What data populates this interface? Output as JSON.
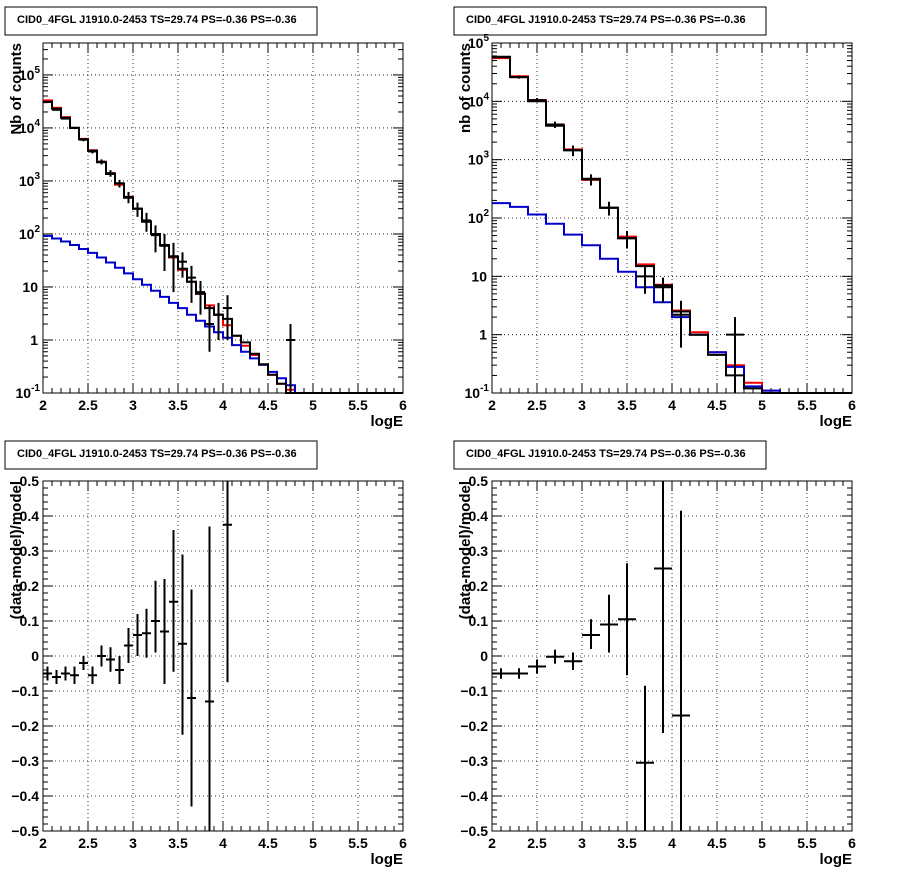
{
  "chart_data": [
    {
      "type": "line",
      "title": "CID0_4FGL J1910.0-2453 TS=29.74 PS=-0.36 PS=-0.36",
      "xlabel": "logE",
      "ylabel": "Nb of counts",
      "xlim": [
        2,
        6
      ],
      "ylim": [
        0.1,
        400000
      ],
      "yscale": "log",
      "grid": true,
      "x_ticks": [
        "2",
        "2.5",
        "3",
        "3.5",
        "4",
        "4.5",
        "5",
        "5.5",
        "6"
      ],
      "y_ticks": [
        "10^-1",
        "1",
        "10",
        "10^2",
        "10^3",
        "10^4",
        "10^5"
      ],
      "bin_edges": [
        2.0,
        2.1,
        2.2,
        2.3,
        2.4,
        2.5,
        2.6,
        2.7,
        2.8,
        2.9,
        3.0,
        3.1,
        3.2,
        3.3,
        3.4,
        3.5,
        3.6,
        3.7,
        3.8,
        3.9,
        4.0,
        4.1,
        4.2,
        4.3,
        4.4,
        4.5,
        4.6,
        4.7,
        4.8,
        4.9,
        5.0,
        5.1,
        5.2,
        5.3,
        5.4,
        5.5,
        5.6,
        5.7,
        5.8,
        5.9,
        6.0
      ],
      "series": [
        {
          "color": "#ff0000",
          "values": [
            33000,
            24000,
            16000,
            10000,
            6200,
            3800,
            2300,
            1400,
            850,
            500,
            300,
            175,
            100,
            60,
            36,
            21,
            12.5,
            7.4,
            4.5,
            3.0,
            1.9,
            1.2,
            0.78,
            0.52,
            0.34,
            0.22,
            0.15,
            0.115,
            0.1,
            0.1,
            0.1,
            0.1,
            0.1,
            0.1,
            0.1,
            0.1,
            0.1,
            0.1,
            0.1,
            0.1
          ]
        },
        {
          "color": "#0000cc",
          "values": [
            92,
            82,
            72,
            62,
            52,
            44,
            36,
            29,
            23,
            18,
            14,
            11,
            8.5,
            6.5,
            5.0,
            4.0,
            3.0,
            2.3,
            1.8,
            1.4,
            1.1,
            0.8,
            0.6,
            0.45,
            0.34,
            0.25,
            0.19,
            0.14,
            0.1,
            0.1,
            0.1,
            0.1,
            0.1,
            0.1,
            0.1,
            0.1,
            0.1,
            0.1,
            0.1,
            0.1
          ]
        },
        {
          "color": "#000000",
          "values": [
            31000,
            23000,
            15500,
            10000,
            6100,
            3700,
            2250,
            1350,
            900,
            480,
            300,
            170,
            100,
            62,
            37,
            22,
            12.5,
            7.5,
            4.0,
            3.0,
            2.5,
            1.2,
            0.9,
            0.55,
            0.35,
            0.22,
            0.15,
            0.1,
            0.1,
            0.1,
            0.1,
            0.1,
            0.1,
            0.1,
            0.1,
            0.1,
            0.1,
            0.1,
            0.1,
            0.1
          ]
        }
      ],
      "data_points": {
        "x": [
          2.05,
          2.15,
          2.25,
          2.35,
          2.45,
          2.55,
          2.65,
          2.75,
          2.85,
          2.95,
          3.05,
          3.15,
          3.25,
          3.35,
          3.45,
          3.55,
          3.65,
          3.75,
          3.85,
          3.95,
          4.05,
          4.75
        ],
        "y": [
          31000,
          22000,
          15000,
          10000,
          6000,
          3600,
          2300,
          1400,
          900,
          500,
          300,
          180,
          95,
          60,
          38,
          30,
          15,
          8,
          2,
          3,
          4,
          1
        ],
        "err_low": [
          1000,
          800,
          600,
          500,
          400,
          300,
          250,
          200,
          150,
          120,
          90,
          70,
          50,
          40,
          30,
          15,
          10,
          5,
          1.4,
          2,
          3,
          0.9
        ],
        "err_high": [
          1000,
          800,
          600,
          500,
          400,
          300,
          250,
          200,
          150,
          120,
          90,
          70,
          50,
          40,
          30,
          15,
          10,
          5,
          2.5,
          2,
          3,
          1.0
        ],
        "xerr": 0.05
      }
    },
    {
      "type": "line",
      "title": "CID0_4FGL J1910.0-2453 TS=29.74 PS=-0.36 PS=-0.36",
      "xlabel": "logE",
      "ylabel": "nb of counts",
      "xlim": [
        2,
        6
      ],
      "ylim": [
        0.1,
        100000
      ],
      "yscale": "log",
      "grid": true,
      "x_ticks": [
        "2",
        "2.5",
        "3",
        "3.5",
        "4",
        "4.5",
        "5",
        "5.5",
        "6"
      ],
      "y_ticks": [
        "10^-1",
        "1",
        "10",
        "10^2",
        "10^3",
        "10^4",
        "10^5"
      ],
      "bin_edges": [
        2.0,
        2.2,
        2.4,
        2.6,
        2.8,
        3.0,
        3.2,
        3.4,
        3.6,
        3.8,
        4.0,
        4.2,
        4.4,
        4.6,
        4.8,
        5.0,
        5.2,
        5.4,
        5.6,
        5.8,
        6.0
      ],
      "series": [
        {
          "color": "#ff0000",
          "values": [
            55000,
            27000,
            10500,
            4000,
            1500,
            450,
            150,
            48,
            16,
            7.2,
            2.6,
            1.1,
            0.5,
            0.3,
            0.15,
            0.11,
            0.1,
            0.1,
            0.1,
            0.1
          ]
        },
        {
          "color": "#0000cc",
          "values": [
            180,
            155,
            115,
            80,
            52,
            34,
            20,
            12,
            6.5,
            3.6,
            2.0,
            1.0,
            0.5,
            0.28,
            0.13,
            0.11,
            0.1,
            0.1,
            0.1,
            0.1
          ]
        },
        {
          "color": "#000000",
          "values": [
            58000,
            26000,
            10000,
            3800,
            1450,
            470,
            150,
            45,
            15,
            7,
            2.5,
            1.0,
            0.45,
            0.2,
            0.12,
            0.1,
            0.1,
            0.1,
            0.1,
            0.1
          ]
        }
      ],
      "data_points": {
        "x": [
          2.1,
          2.3,
          2.5,
          2.7,
          2.9,
          3.1,
          3.3,
          3.5,
          3.7,
          3.9,
          4.1,
          4.7
        ],
        "y": [
          57000,
          26000,
          10500,
          4000,
          1450,
          460,
          150,
          45,
          10,
          6.5,
          2.2,
          1
        ],
        "err_low": [
          2000,
          1500,
          900,
          500,
          300,
          100,
          40,
          15,
          5,
          3,
          1.6,
          0.9
        ],
        "err_high": [
          2000,
          1500,
          900,
          500,
          300,
          100,
          40,
          15,
          5,
          3,
          1.6,
          1.0
        ],
        "xerr": 0.1
      }
    },
    {
      "type": "scatter",
      "title": "CID0_4FGL J1910.0-2453 TS=29.74 PS=-0.36 PS=-0.36",
      "xlabel": "logE",
      "ylabel": "(data-model)/model",
      "xlim": [
        2,
        6
      ],
      "ylim": [
        -0.5,
        0.5
      ],
      "grid": true,
      "x_ticks": [
        "2",
        "2.5",
        "3",
        "3.5",
        "4",
        "4.5",
        "5",
        "5.5",
        "6"
      ],
      "y_ticks": [
        "−0.5",
        "−0.4",
        "−0.3",
        "−0.2",
        "−0.1",
        "0",
        "0.1",
        "0.2",
        "0.3",
        "0.4",
        "0.5"
      ],
      "data_points": {
        "x": [
          2.05,
          2.15,
          2.25,
          2.35,
          2.45,
          2.55,
          2.65,
          2.75,
          2.85,
          2.95,
          3.05,
          3.15,
          3.25,
          3.35,
          3.45,
          3.55,
          3.65,
          3.85,
          4.05
        ],
        "y": [
          -0.05,
          -0.06,
          -0.05,
          -0.055,
          -0.02,
          -0.055,
          0.0,
          -0.01,
          -0.04,
          0.03,
          0.06,
          0.065,
          0.1,
          0.07,
          0.155,
          0.035,
          -0.12,
          -0.13,
          0.375
        ],
        "err_low": [
          0.02,
          0.02,
          0.02,
          0.025,
          0.02,
          0.025,
          0.03,
          0.035,
          0.04,
          0.05,
          0.06,
          0.07,
          0.09,
          0.15,
          0.2,
          0.26,
          0.31,
          0.5,
          0.45
        ],
        "err_high": [
          0.02,
          0.02,
          0.02,
          0.025,
          0.02,
          0.025,
          0.03,
          0.035,
          0.04,
          0.05,
          0.06,
          0.07,
          0.115,
          0.15,
          0.205,
          0.255,
          0.31,
          0.5,
          0.45
        ],
        "xerr": 0.05
      }
    },
    {
      "type": "scatter",
      "title": "CID0_4FGL J1910.0-2453 TS=29.74 PS=-0.36 PS=-0.36",
      "xlabel": "logE",
      "ylabel": "(data-model)/model",
      "xlim": [
        2,
        6
      ],
      "ylim": [
        -0.5,
        0.5
      ],
      "grid": true,
      "x_ticks": [
        "2",
        "2.5",
        "3",
        "3.5",
        "4",
        "4.5",
        "5",
        "5.5",
        "6"
      ],
      "y_ticks": [
        "−0.5",
        "−0.4",
        "−0.3",
        "−0.2",
        "−0.1",
        "0",
        "0.1",
        "0.2",
        "0.3",
        "0.4",
        "0.5"
      ],
      "data_points": {
        "x": [
          2.1,
          2.3,
          2.5,
          2.7,
          2.9,
          3.1,
          3.3,
          3.5,
          3.7,
          3.9,
          4.1
        ],
        "y": [
          -0.05,
          -0.05,
          -0.03,
          -0.002,
          -0.015,
          0.06,
          0.09,
          0.105,
          -0.305,
          0.25,
          -0.17
        ],
        "err_low": [
          0.015,
          0.015,
          0.02,
          0.02,
          0.025,
          0.04,
          0.08,
          0.16,
          0.22,
          0.47,
          0.6
        ],
        "err_high": [
          0.015,
          0.015,
          0.02,
          0.02,
          0.025,
          0.045,
          0.085,
          0.16,
          0.22,
          0.47,
          0.585
        ],
        "xerr": 0.1
      }
    }
  ]
}
